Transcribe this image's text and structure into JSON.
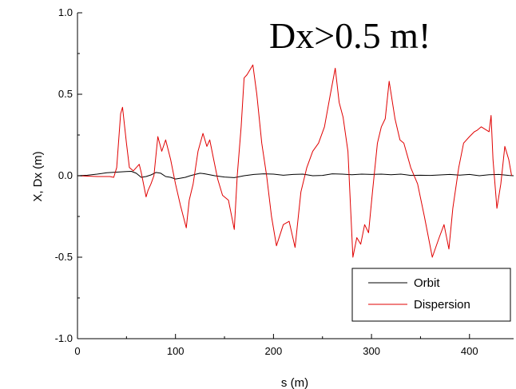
{
  "chart_data": {
    "type": "line",
    "title": "",
    "annotation": "Dx>0.5 m!",
    "xlabel": "s (m)",
    "ylabel": "X, Dx (m)",
    "xlim": [
      0,
      445
    ],
    "ylim": [
      -1.0,
      1.0
    ],
    "x_ticks": [
      0,
      100,
      200,
      300,
      400
    ],
    "x_tick_labels": [
      "0",
      "100",
      "200",
      "300",
      "400"
    ],
    "y_ticks": [
      -1.0,
      -0.5,
      0.0,
      0.5,
      1.0
    ],
    "y_tick_labels": [
      "-1.0",
      "-0.5",
      "0.0",
      "0.5",
      "1.0"
    ],
    "grid": false,
    "legend_position": "bottom-right",
    "series": [
      {
        "name": "Orbit",
        "color": "#000000",
        "x": [
          0,
          10,
          20,
          30,
          40,
          50,
          55,
          60,
          65,
          70,
          75,
          80,
          85,
          90,
          95,
          100,
          105,
          110,
          115,
          120,
          125,
          130,
          140,
          150,
          160,
          170,
          180,
          190,
          200,
          210,
          220,
          230,
          240,
          250,
          260,
          270,
          280,
          290,
          300,
          310,
          320,
          330,
          340,
          350,
          360,
          370,
          380,
          390,
          400,
          410,
          420,
          430,
          440,
          445
        ],
        "y": [
          0.0,
          0.003,
          0.01,
          0.018,
          0.022,
          0.026,
          0.027,
          0.015,
          -0.01,
          -0.005,
          0.005,
          0.02,
          0.015,
          -0.005,
          -0.01,
          -0.02,
          -0.015,
          -0.01,
          0.0,
          0.008,
          0.015,
          0.012,
          0.0,
          -0.008,
          -0.012,
          0.0,
          0.008,
          0.012,
          0.01,
          0.003,
          0.008,
          0.01,
          0.0,
          0.002,
          0.012,
          0.01,
          0.006,
          0.01,
          0.008,
          0.01,
          0.006,
          0.01,
          0.002,
          0.003,
          0.002,
          0.005,
          0.008,
          0.004,
          0.008,
          0.0,
          0.006,
          0.008,
          0.002,
          0.0
        ]
      },
      {
        "name": "Dispersion",
        "color": "#e00000",
        "x": [
          0,
          20,
          33,
          37,
          40,
          44,
          46,
          50,
          53,
          57,
          60,
          63,
          65,
          70,
          72,
          75,
          78,
          82,
          86,
          90,
          95,
          100,
          105,
          111,
          114,
          118,
          123,
          128,
          132,
          135,
          139,
          143,
          148,
          154,
          160,
          163,
          167,
          170,
          173,
          179,
          183,
          188,
          193,
          198,
          203,
          210,
          216,
          222,
          228,
          234,
          240,
          246,
          252,
          258,
          263,
          267,
          271,
          276,
          281,
          285,
          289,
          293,
          297,
          301,
          306,
          310,
          314,
          318,
          324,
          329,
          333,
          340,
          347,
          354,
          362,
          369,
          374,
          379,
          383,
          389,
          394,
          400,
          405,
          408,
          412,
          420,
          422,
          424,
          428,
          432,
          436,
          440,
          443
        ],
        "y": [
          0.0,
          -0.005,
          -0.005,
          -0.01,
          0.05,
          0.38,
          0.42,
          0.2,
          0.05,
          0.03,
          0.05,
          0.07,
          0.02,
          -0.13,
          -0.09,
          -0.05,
          0.0,
          0.24,
          0.15,
          0.22,
          0.1,
          -0.05,
          -0.18,
          -0.32,
          -0.15,
          -0.05,
          0.15,
          0.26,
          0.18,
          0.22,
          0.1,
          -0.02,
          -0.12,
          -0.15,
          -0.33,
          0.0,
          0.3,
          0.6,
          0.62,
          0.68,
          0.5,
          0.2,
          0.0,
          -0.25,
          -0.43,
          -0.3,
          -0.28,
          -0.44,
          -0.1,
          0.05,
          0.15,
          0.2,
          0.3,
          0.5,
          0.66,
          0.45,
          0.36,
          0.15,
          -0.5,
          -0.38,
          -0.42,
          -0.3,
          -0.35,
          -0.1,
          0.2,
          0.3,
          0.35,
          0.58,
          0.35,
          0.22,
          0.2,
          0.05,
          -0.05,
          -0.25,
          -0.5,
          -0.38,
          -0.3,
          -0.45,
          -0.2,
          0.05,
          0.2,
          0.24,
          0.27,
          0.28,
          0.3,
          0.27,
          0.37,
          0.1,
          -0.2,
          -0.05,
          0.18,
          0.1,
          0.0
        ]
      }
    ]
  }
}
